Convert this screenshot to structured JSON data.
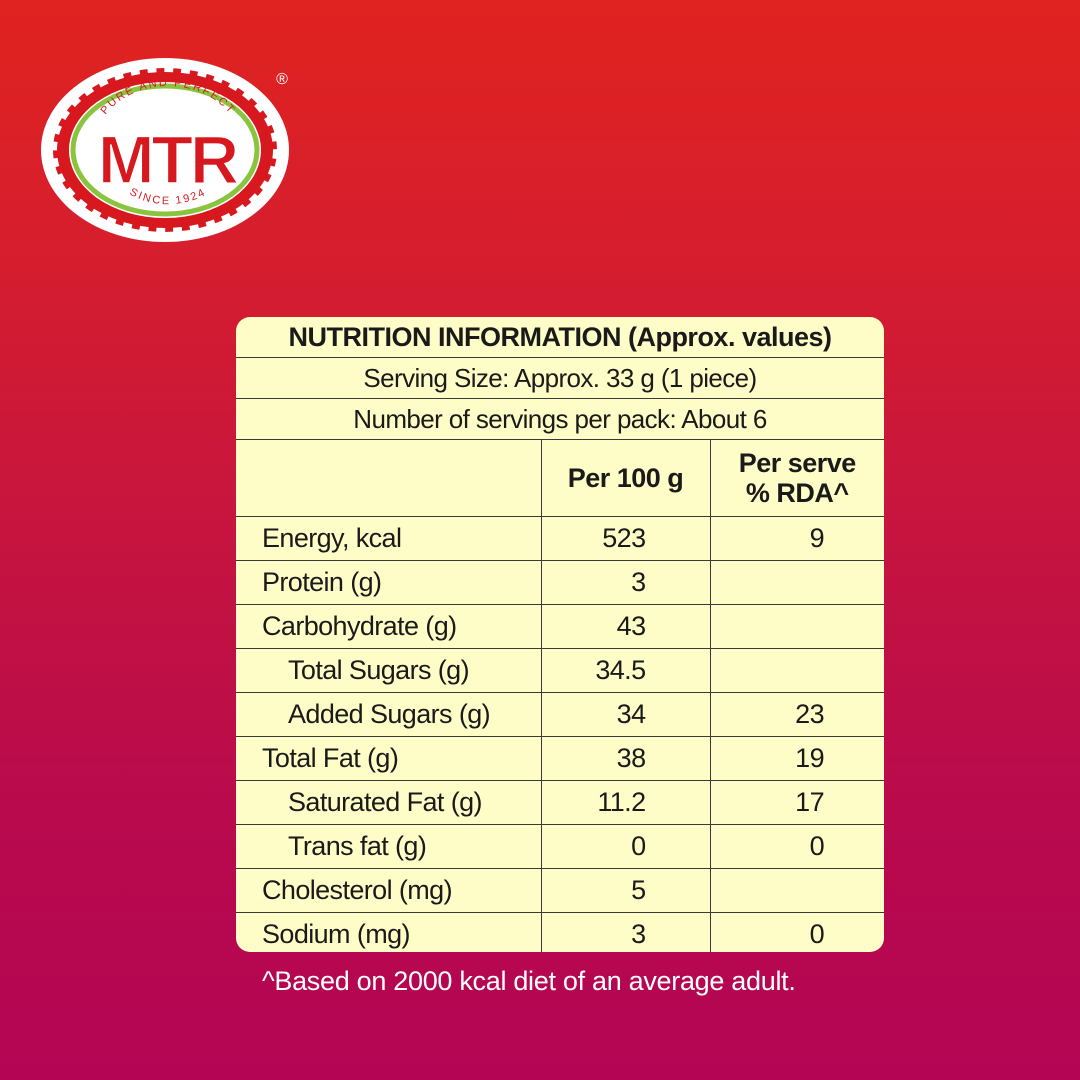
{
  "brand": {
    "name": "MTR",
    "tagline_top": "PURE AND PERFECT",
    "tagline_bottom": "SINCE 1924",
    "registered_mark": "®",
    "colors": {
      "background_top": "#e0231f",
      "background_bottom": "#b30553",
      "logo_red": "#d7191f",
      "logo_green": "#8ac43f",
      "panel": "#fffdc7"
    }
  },
  "nutrition": {
    "title": "NUTRITION INFORMATION (Approx. values)",
    "serving_size": "Serving Size: Approx. 33 g (1 piece)",
    "servings_per_pack": "Number of servings per pack: About 6",
    "columns": {
      "per100": "Per 100 g",
      "per_serve_line1": "Per serve",
      "per_serve_line2": "% RDA^"
    },
    "rows": [
      {
        "name": "Energy, kcal",
        "per100": "523",
        "rda": "9"
      },
      {
        "name": "Protein (g)",
        "per100": "3",
        "rda": ""
      },
      {
        "name": "Carbohydrate (g)",
        "per100": "43",
        "rda": ""
      },
      {
        "name": "Total Sugars (g)",
        "per100": "34.5",
        "rda": ""
      },
      {
        "name": "Added Sugars (g)",
        "per100": "34",
        "rda": "23"
      },
      {
        "name": "Total Fat (g)",
        "per100": "38",
        "rda": "19"
      },
      {
        "name": "Saturated Fat (g)",
        "per100": "11.2",
        "rda": "17"
      },
      {
        "name": "Trans fat (g)",
        "per100": "0",
        "rda": "0"
      },
      {
        "name": "Cholesterol (mg)",
        "per100": "5",
        "rda": ""
      },
      {
        "name": "Sodium (mg)",
        "per100": "3",
        "rda": "0"
      }
    ]
  },
  "footnote": "^Based on 2000 kcal diet of an average adult."
}
